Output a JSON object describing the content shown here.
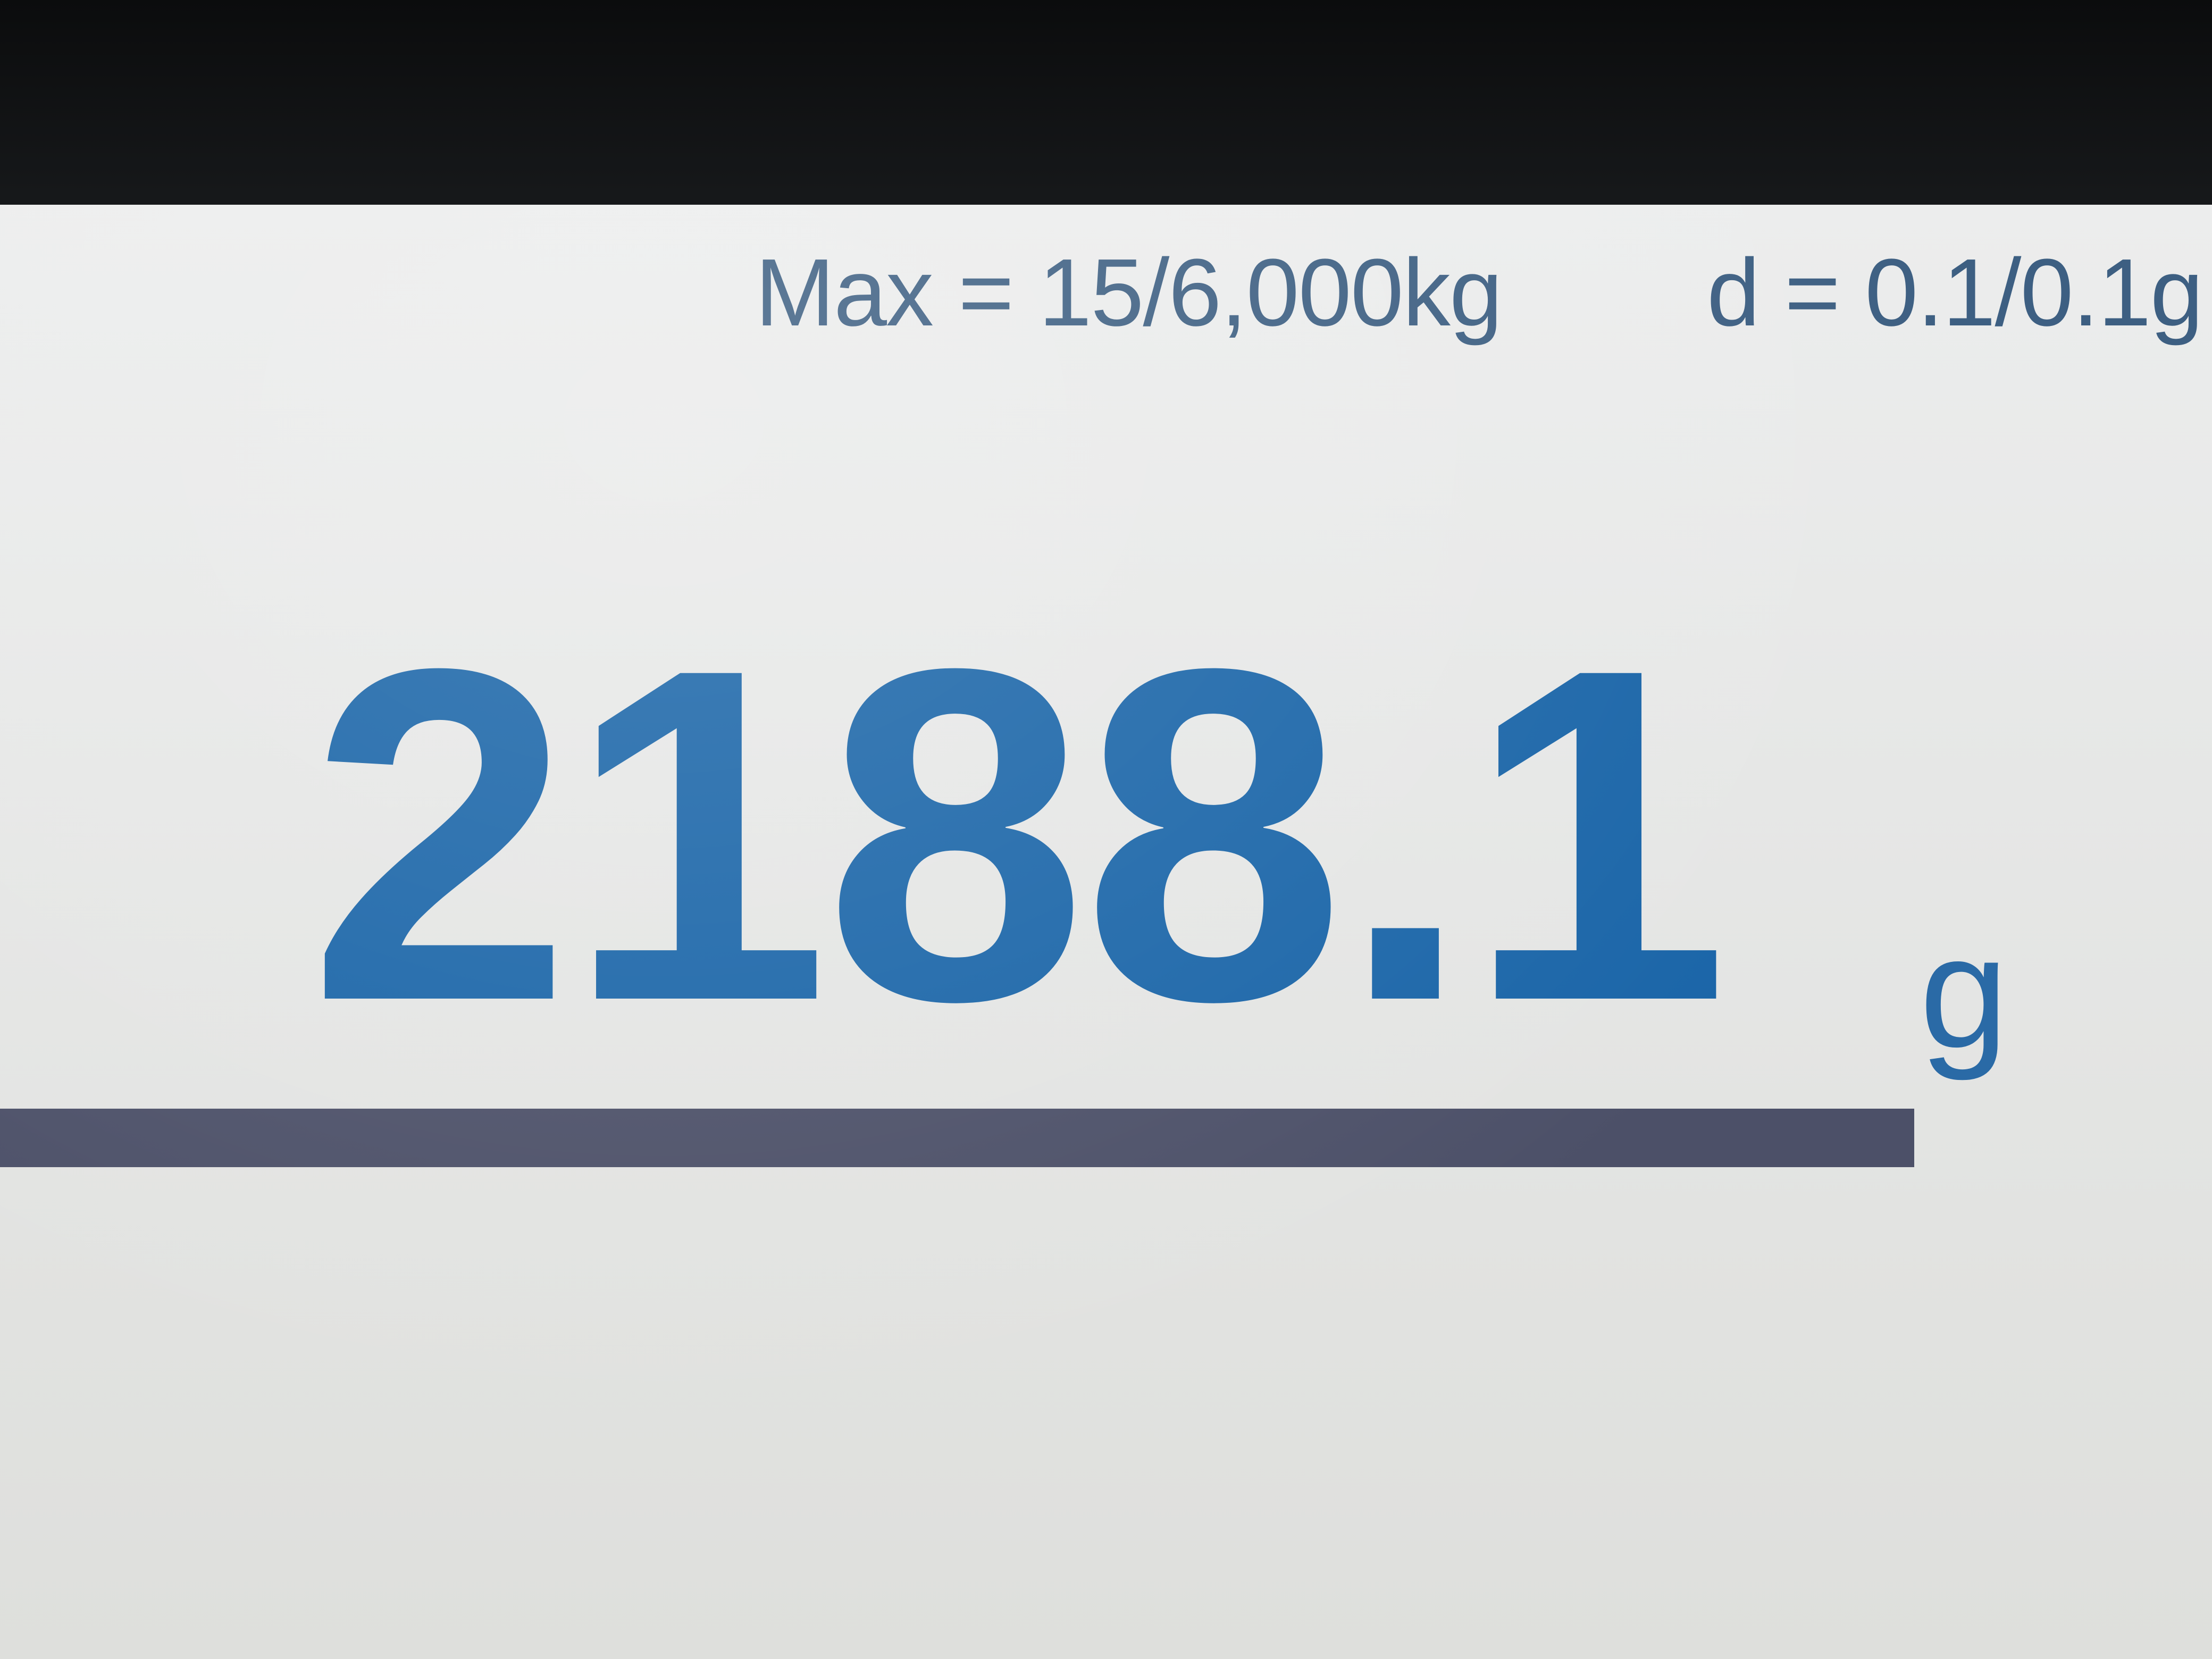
{
  "display": {
    "spec_max": "Max = 15/6,000kg",
    "spec_d": "d = 0.1/0.1g",
    "weight_value": "2188.1",
    "weight_unit": "g"
  },
  "colors": {
    "digits": "#1a65a8",
    "spec_text": "#3d5f82",
    "bar": "#4c5068",
    "screen_background": "#e6e7e6",
    "bezel": "#0e1012"
  }
}
